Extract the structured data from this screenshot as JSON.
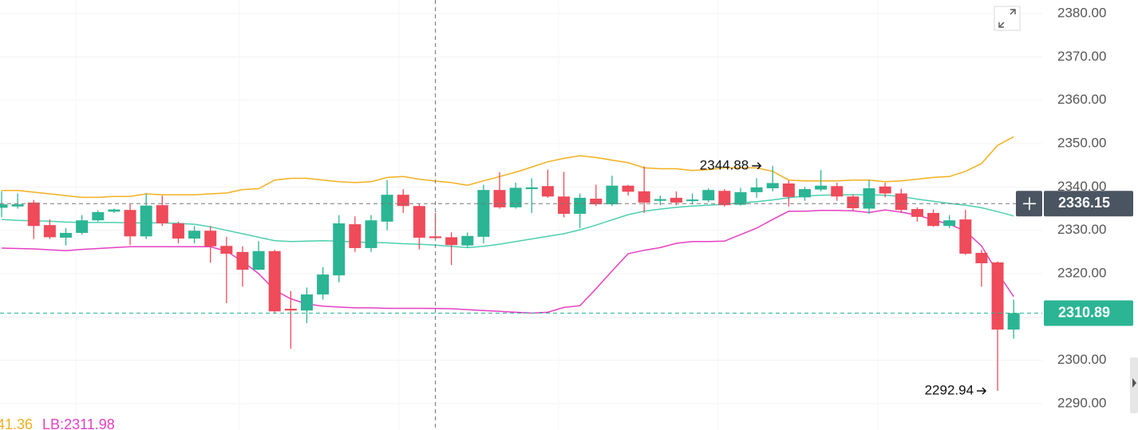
{
  "chart_data": {
    "type": "candlestick",
    "up_color": "#2bb594",
    "down_color": "#ef4b5a",
    "ylim": [
      2283.93,
      2383.13
    ],
    "yticks": [
      {
        "value": 2380,
        "label": "2380.00"
      },
      {
        "value": 2370,
        "label": "2370.00"
      },
      {
        "value": 2360,
        "label": "2360.00"
      },
      {
        "value": 2350,
        "label": "2350.00"
      },
      {
        "value": 2340,
        "label": "2340.00"
      },
      {
        "value": 2330,
        "label": "2330.00"
      },
      {
        "value": 2320,
        "label": "2320.00"
      },
      {
        "value": 2310,
        "label": "2310.00"
      },
      {
        "value": 2300,
        "label": "2300.00"
      },
      {
        "value": 2290,
        "label": "2290.00"
      }
    ],
    "grid": true,
    "candles": {
      "open": [
        2335.2,
        2335.5,
        2336.4,
        2331.2,
        2328.3,
        2329.4,
        2332.3,
        2334.3,
        2334.7,
        2328.6,
        2335.8,
        2331.6,
        2328.1,
        2329.9,
        2326.4,
        2325,
        2320.9,
        2325.2,
        2311.9,
        2311.5,
        2315.2,
        2319.6,
        2331.4,
        2325.9,
        2332,
        2338.2,
        2335.6,
        2328.6,
        2328.4,
        2326.5,
        2328.5,
        2339.3,
        2335.3,
        2339.5,
        2340.2,
        2337.8,
        2333.8,
        2337.3,
        2336,
        2340.3,
        2339,
        2336.8,
        2337.5,
        2336.8,
        2336.9,
        2339.1,
        2335.9,
        2338.8,
        2339.7,
        2340.8,
        2337.6,
        2339.4,
        2340.2,
        2337.8,
        2335,
        2340.1,
        2338.5,
        2334.9,
        2334,
        2331,
        2332.5,
        2324.8,
        2322.6,
        2307.1
      ],
      "high": [
        2339,
        2338.5,
        2337,
        2332.5,
        2330.5,
        2333.5,
        2334.6,
        2335,
        2336,
        2338.5,
        2338,
        2332,
        2331,
        2331,
        2328.5,
        2326.3,
        2327.5,
        2325.5,
        2316,
        2316.8,
        2321.5,
        2333.5,
        2333.2,
        2333.5,
        2341.6,
        2339.5,
        2336,
        2334,
        2329.5,
        2329.5,
        2340.5,
        2343.4,
        2341,
        2342,
        2344,
        2343.5,
        2338.5,
        2340.5,
        2342.6,
        2340.5,
        2344.7,
        2338,
        2339,
        2338.5,
        2339.7,
        2339.5,
        2339.8,
        2342,
        2344.88,
        2341.5,
        2340,
        2343.9,
        2341,
        2338.3,
        2341.6,
        2341,
        2339.6,
        2335.3,
        2334.8,
        2333.5,
        2334.7,
        2325.5,
        2322.8,
        2314
      ],
      "low": [
        2333,
        2335,
        2328,
        2328,
        2326.5,
        2329,
        2332,
        2334,
        2326.6,
        2328,
        2331,
        2327,
        2327,
        2322.5,
        2313.2,
        2317,
        2320.9,
        2311,
        2302.7,
        2308.6,
        2314,
        2318,
        2325,
        2325,
        2330,
        2334,
        2325.6,
        2328,
        2322,
        2326,
        2327,
        2335,
        2335,
        2334,
        2337.5,
        2333,
        2330.5,
        2335.6,
        2335.6,
        2338,
        2334,
        2335.8,
        2335.8,
        2336,
        2336.5,
        2335.5,
        2335.7,
        2337.5,
        2339,
        2335.5,
        2336.8,
        2339,
        2336.8,
        2334.5,
        2333.8,
        2337.6,
        2334,
        2332,
        2330.8,
        2330.5,
        2324.3,
        2317,
        2292.94,
        2305
      ],
      "close": [
        2336,
        2336,
        2331,
        2328.4,
        2329.4,
        2332.3,
        2334.2,
        2334.8,
        2328.6,
        2335.7,
        2331.6,
        2328.1,
        2329.9,
        2326.3,
        2324.6,
        2320.9,
        2325.2,
        2311.3,
        2311.5,
        2315.2,
        2319.8,
        2331.6,
        2325.9,
        2332.3,
        2338.2,
        2335.6,
        2328.3,
        2328.2,
        2326.6,
        2328.7,
        2339.3,
        2335.3,
        2339.8,
        2339.9,
        2337.8,
        2333.8,
        2337.5,
        2336,
        2340.3,
        2338.9,
        2336.4,
        2337.2,
        2336.4,
        2337.1,
        2339.3,
        2335.8,
        2338.8,
        2339.9,
        2340.9,
        2337.7,
        2339.5,
        2340.3,
        2337.8,
        2335.1,
        2339.7,
        2338.5,
        2334.7,
        2333.1,
        2331,
        2332.3,
        2324.6,
        2322.4,
        2307.1,
        2310.89
      ]
    },
    "lines": [
      {
        "color": "#f2b01e",
        "values": [
          2339.2,
          2339.2,
          2338.8,
          2338.4,
          2338,
          2337.6,
          2337.6,
          2337.8,
          2337.8,
          2338.4,
          2338.2,
          2338.2,
          2338.2,
          2338.4,
          2338.6,
          2339.4,
          2339.6,
          2341.6,
          2342,
          2342,
          2341.6,
          2341.2,
          2341,
          2341.2,
          2342.2,
          2342.4,
          2341.8,
          2341.36,
          2341,
          2340.4,
          2341.4,
          2342.4,
          2343.4,
          2344.6,
          2345.8,
          2346.6,
          2347.2,
          2346.8,
          2346.2,
          2345.6,
          2344.4,
          2344.2,
          2344.2,
          2343.8,
          2344,
          2344.4,
          2344.4,
          2344.4,
          2343.6,
          2341.6,
          2341.4,
          2341.4,
          2341.4,
          2341.6,
          2341.6,
          2341.2,
          2341.4,
          2341.8,
          2342.2,
          2342.4,
          2343.6,
          2345.4,
          2349.6,
          2351.6
        ]
      },
      {
        "color": "#4dcfb0",
        "values": [
          2332.5,
          2332.3,
          2332.2,
          2332.1,
          2331.9,
          2331.8,
          2331.8,
          2331.8,
          2331.7,
          2331.7,
          2331.7,
          2331.6,
          2331.4,
          2330.8,
          2330,
          2329.2,
          2328.4,
          2327.6,
          2327.4,
          2327.5,
          2327.6,
          2327.5,
          2327.3,
          2327.2,
          2327.1,
          2326.9,
          2326.8,
          2326.6,
          2326.3,
          2326,
          2326.3,
          2326.8,
          2327.4,
          2328,
          2328.6,
          2329.2,
          2330.1,
          2331.2,
          2332.4,
          2333.6,
          2334.4,
          2334.9,
          2335.3,
          2335.6,
          2335.8,
          2336,
          2336.3,
          2336.6,
          2337,
          2337.5,
          2337.9,
          2338.1,
          2338.2,
          2338.2,
          2338.2,
          2338.1,
          2337.8,
          2337.2,
          2336.7,
          2336.2,
          2335.8,
          2335.2,
          2334.3,
          2333.3
        ]
      },
      {
        "color": "#e63fc4",
        "values": [
          2325.9,
          2325.8,
          2325.7,
          2325.5,
          2325.3,
          2325.6,
          2325.8,
          2326,
          2326.2,
          2326.2,
          2326.2,
          2326.2,
          2326.2,
          2326.2,
          2325.2,
          2322.8,
          2320,
          2316.2,
          2314.2,
          2313,
          2312.5,
          2312.3,
          2312.1,
          2312.1,
          2312,
          2312,
          2312,
          2311.98,
          2311.9,
          2311.7,
          2311.5,
          2311.3,
          2311.1,
          2310.9,
          2311.1,
          2312.2,
          2312.6,
          2316.5,
          2320.6,
          2324.6,
          2325.4,
          2326,
          2327,
          2327.4,
          2327.4,
          2327.5,
          2329,
          2330.5,
          2332.5,
          2334.4,
          2334.4,
          2334.6,
          2334.6,
          2334.5,
          2334.1,
          2334.7,
          2334.2,
          2333.5,
          2332.4,
          2331.4,
          2329.8,
          2326.4,
          2320.2,
          2314.7
        ]
      }
    ],
    "legend": [
      {
        "text": "41.36",
        "color": "#f2b01e"
      },
      {
        "text": "LB:2311.98",
        "color": "#e63fc4"
      }
    ],
    "crosshair": {
      "price": 2336.15,
      "index": 27
    },
    "last_price": 2310.89,
    "high_marker": 2344.88,
    "low_marker": 2292.94
  }
}
